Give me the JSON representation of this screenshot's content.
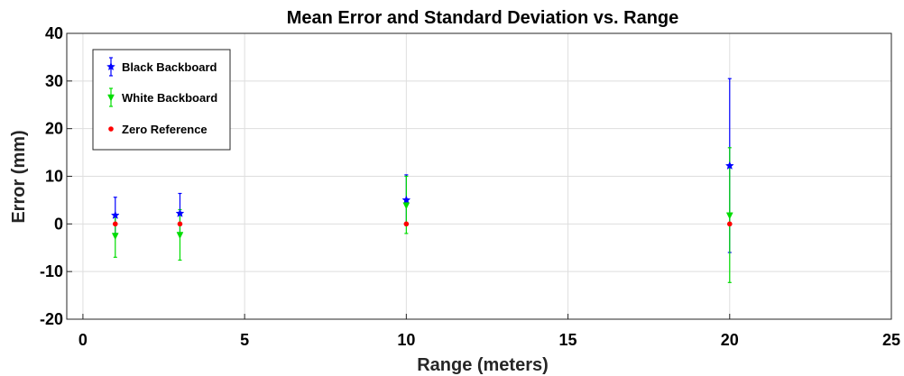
{
  "chart_data": {
    "type": "scatter",
    "title": "Mean Error and Standard Deviation vs. Range",
    "xlabel": "Range (meters)",
    "ylabel": "Error (mm)",
    "xlim": [
      -0.5,
      25
    ],
    "ylim": [
      -20,
      40
    ],
    "xticks": [
      0,
      5,
      10,
      15,
      20,
      25
    ],
    "yticks": [
      -20,
      -10,
      0,
      10,
      20,
      30,
      40
    ],
    "grid": true,
    "legend_position": "top-left",
    "series": [
      {
        "name": "Black Backboard",
        "color": "#0000ff",
        "marker": "star",
        "x": [
          1,
          3,
          10,
          20
        ],
        "y": [
          1.8,
          2.2,
          5.0,
          12.2
        ],
        "err_low": [
          -2.0,
          -2.0,
          -0.2,
          -6.0
        ],
        "err_high": [
          5.6,
          6.4,
          10.3,
          30.5
        ]
      },
      {
        "name": "White Backboard",
        "color": "#00dd00",
        "marker": "triangle-down",
        "x": [
          1,
          3,
          10,
          20
        ],
        "y": [
          -2.5,
          -2.3,
          3.9,
          1.8
        ],
        "err_low": [
          -7.0,
          -7.6,
          -2.0,
          -12.3
        ],
        "err_high": [
          2.0,
          3.0,
          10.0,
          16.0
        ]
      },
      {
        "name": "Zero Reference",
        "color": "#ff0000",
        "marker": "dot",
        "x": [
          1,
          3,
          10,
          20
        ],
        "y": [
          0,
          0,
          0,
          0
        ]
      }
    ]
  }
}
